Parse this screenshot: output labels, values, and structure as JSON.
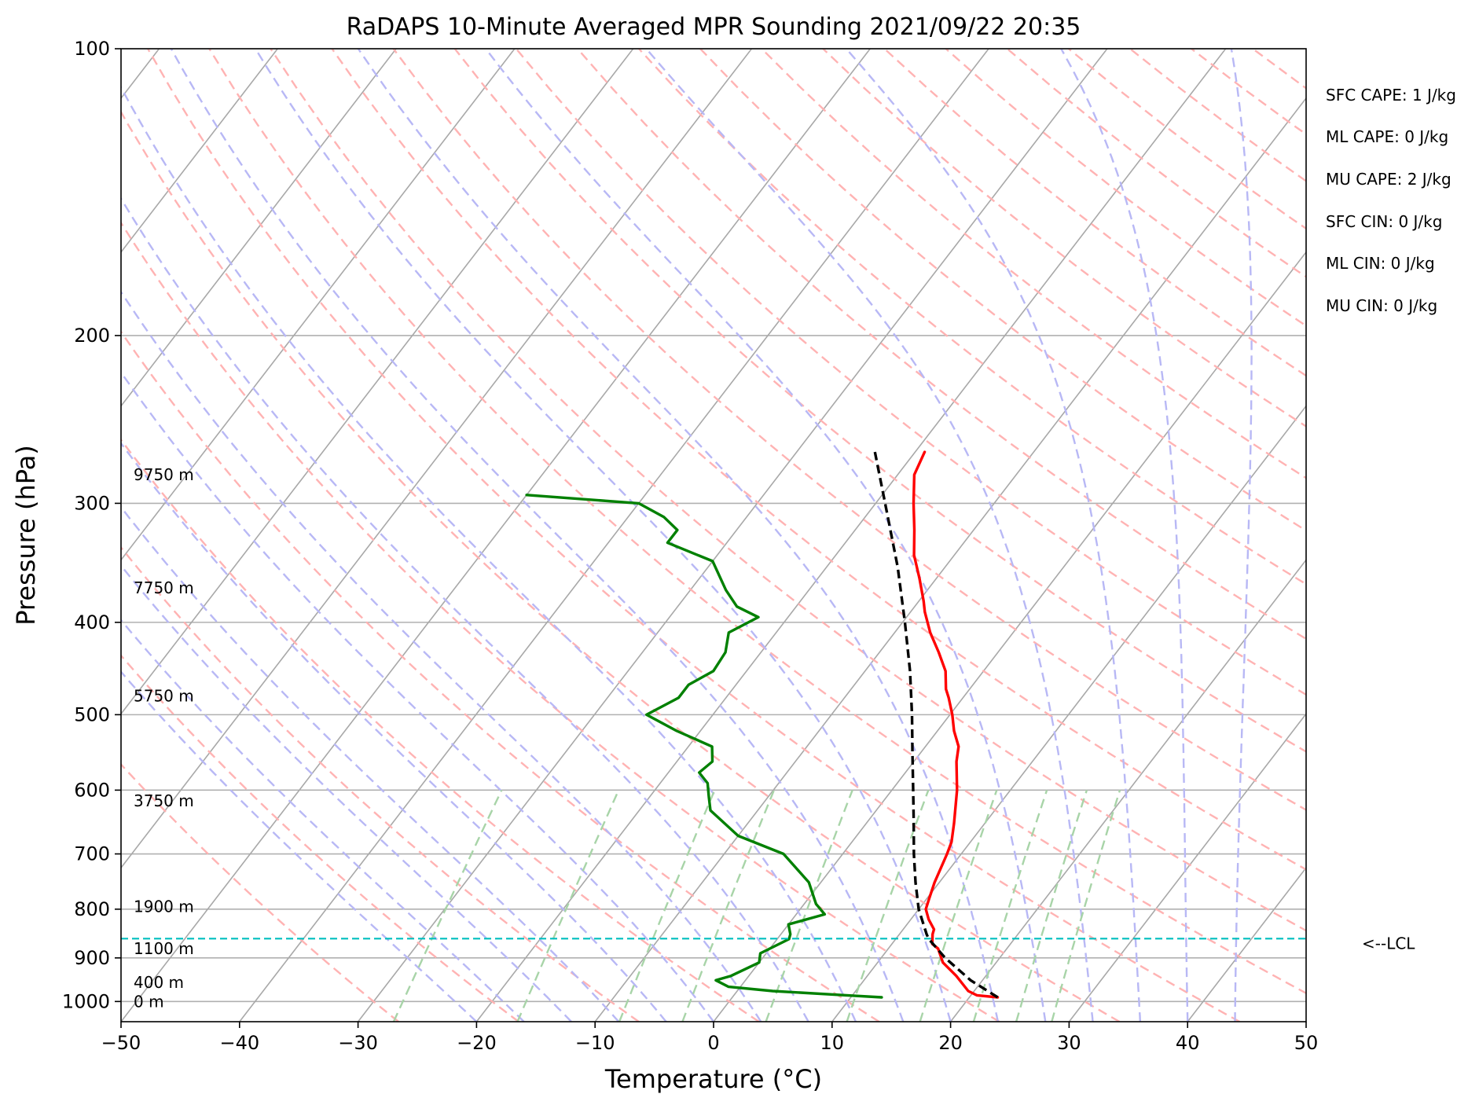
{
  "chart_data": {
    "type": "line",
    "subtype": "skew-t log-p",
    "title": "RaDAPS 10-Minute Averaged MPR Sounding 2021/09/22 20:35",
    "xlabel": "Temperature (°C)",
    "ylabel": "Pressure (hPa)",
    "xlim": [
      -50,
      50
    ],
    "ylim": [
      1050,
      100
    ],
    "y_scale": "log",
    "grid": true,
    "x_ticks": [
      "−50",
      "−40",
      "−30",
      "−20",
      "−10",
      "0",
      "10",
      "20",
      "30",
      "40",
      "50"
    ],
    "x_tick_values": [
      -50,
      -40,
      -30,
      -20,
      -10,
      0,
      10,
      20,
      30,
      40,
      50
    ],
    "y_ticks": [
      "100",
      "200",
      "300",
      "400",
      "500",
      "600",
      "700",
      "800",
      "900",
      "1000"
    ],
    "y_tick_values": [
      100,
      200,
      300,
      400,
      500,
      600,
      700,
      800,
      900,
      1000
    ],
    "series": [
      {
        "role": "temperature",
        "color": "#ff0000",
        "style": "solid",
        "points": [
          [
            990,
            22.4
          ],
          [
            985,
            20.5
          ],
          [
            975,
            19.5
          ],
          [
            940,
            17.5
          ],
          [
            910,
            15.5
          ],
          [
            880,
            14.2
          ],
          [
            870,
            13.4
          ],
          [
            850,
            12.8
          ],
          [
            840,
            12.6
          ],
          [
            820,
            11.5
          ],
          [
            800,
            10.6
          ],
          [
            780,
            10.2
          ],
          [
            750,
            9.6
          ],
          [
            700,
            8.8
          ],
          [
            680,
            8.4
          ],
          [
            650,
            7.4
          ],
          [
            600,
            5.5
          ],
          [
            560,
            3.6
          ],
          [
            540,
            2.8
          ],
          [
            520,
            1.4
          ],
          [
            500,
            0.2
          ],
          [
            480,
            -1.2
          ],
          [
            470,
            -2.0
          ],
          [
            450,
            -3.2
          ],
          [
            430,
            -5.0
          ],
          [
            410,
            -7.0
          ],
          [
            390,
            -8.8
          ],
          [
            380,
            -9.6
          ],
          [
            360,
            -11.4
          ],
          [
            340,
            -13.4
          ],
          [
            320,
            -15.0
          ],
          [
            300,
            -16.8
          ],
          [
            280,
            -18.6
          ],
          [
            265,
            -19.2
          ]
        ]
      },
      {
        "role": "parcel",
        "color": "#000000",
        "style": "dashed",
        "points": [
          [
            990,
            22.4
          ],
          [
            950,
            19.0
          ],
          [
            900,
            15.4
          ],
          [
            860,
            12.8
          ],
          [
            850,
            12.3
          ],
          [
            800,
            10.0
          ],
          [
            750,
            8.0
          ],
          [
            700,
            6.0
          ],
          [
            650,
            4.0
          ],
          [
            600,
            1.8
          ],
          [
            550,
            -0.6
          ],
          [
            500,
            -3.2
          ],
          [
            450,
            -6.2
          ],
          [
            400,
            -9.8
          ],
          [
            350,
            -14.0
          ],
          [
            300,
            -19.2
          ],
          [
            265,
            -23.4
          ]
        ]
      },
      {
        "role": "dewpoint",
        "color": "#008000",
        "style": "solid",
        "points": [
          [
            990,
            12.6
          ],
          [
            985,
            9.5
          ],
          [
            975,
            3.0
          ],
          [
            965,
            -1.0
          ],
          [
            950,
            -2.5
          ],
          [
            940,
            -1.5
          ],
          [
            910,
            0.0
          ],
          [
            890,
            -0.5
          ],
          [
            880,
            0.0
          ],
          [
            860,
            1.0
          ],
          [
            850,
            0.8
          ],
          [
            830,
            0.0
          ],
          [
            810,
            2.4
          ],
          [
            790,
            1.0
          ],
          [
            750,
            -1.0
          ],
          [
            700,
            -5.0
          ],
          [
            670,
            -10.0
          ],
          [
            630,
            -14.0
          ],
          [
            610,
            -15.0
          ],
          [
            590,
            -16.0
          ],
          [
            575,
            -17.4
          ],
          [
            560,
            -17.0
          ],
          [
            540,
            -18.0
          ],
          [
            520,
            -22.0
          ],
          [
            500,
            -25.6
          ],
          [
            480,
            -24.0
          ],
          [
            465,
            -24.0
          ],
          [
            450,
            -22.8
          ],
          [
            430,
            -23.0
          ],
          [
            410,
            -24.0
          ],
          [
            395,
            -22.5
          ],
          [
            385,
            -25.0
          ],
          [
            370,
            -27.0
          ],
          [
            345,
            -30.0
          ],
          [
            330,
            -35.0
          ],
          [
            320,
            -35.0
          ],
          [
            310,
            -37.0
          ],
          [
            300,
            -40.0
          ],
          [
            294,
            -50.0
          ]
        ]
      }
    ],
    "height_labels": [
      {
        "text": "9750 m",
        "p": 280
      },
      {
        "text": "7750 m",
        "p": 368
      },
      {
        "text": "5750 m",
        "p": 478
      },
      {
        "text": "3750 m",
        "p": 616
      },
      {
        "text": "1900 m",
        "p": 795
      },
      {
        "text": "1100 m",
        "p": 880
      },
      {
        "text": "400 m",
        "p": 955
      },
      {
        "text": "0 m",
        "p": 1000
      }
    ],
    "lcl": {
      "p": 859,
      "label": "<--LCL",
      "color": "#00bfbf"
    },
    "indices": [
      "SFC CAPE: 1 J/kg",
      "ML CAPE: 0 J/kg",
      "MU CAPE: 2 J/kg",
      "SFC CIN: 0 J/kg",
      "ML CIN: 0 J/kg",
      "MU CIN: 0 J/kg"
    ],
    "reference_lines": {
      "isotherms_color": "#a8a8a8",
      "dry_adiabats_color": "#ffb3b3",
      "moist_adiabats_color": "#b8b8f5",
      "mixing_ratio_color": "#a8d4a8"
    }
  }
}
